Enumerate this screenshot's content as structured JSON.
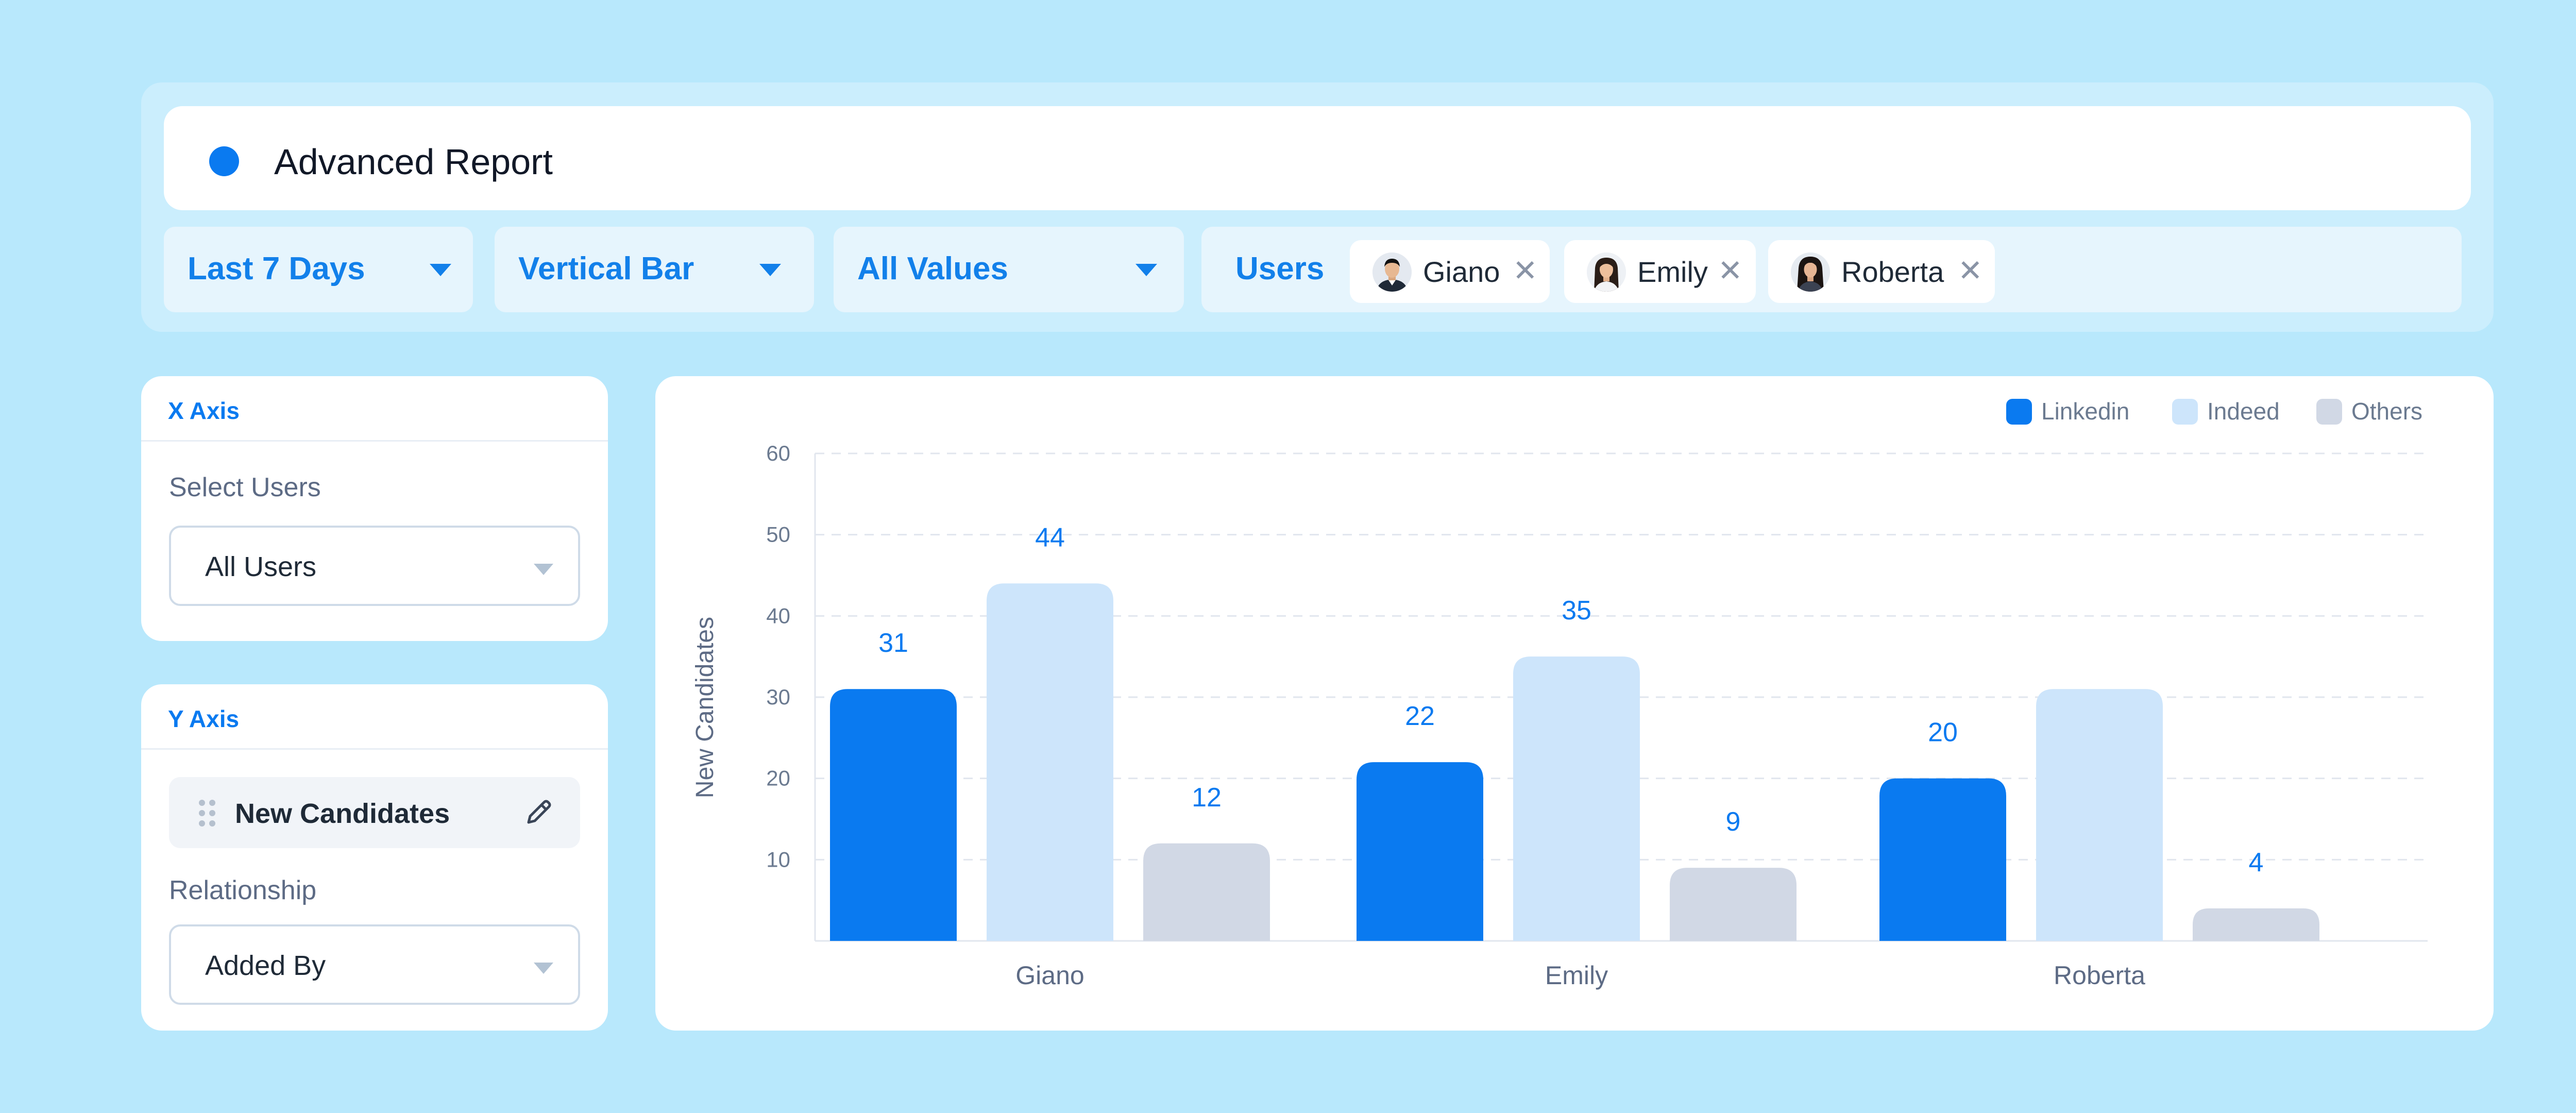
{
  "report": {
    "title": "Advanced Report",
    "accent_color": "#0a7af0"
  },
  "filters": {
    "date_range": "Last 7 Days",
    "chart_type": "Vertical Bar",
    "values": "All Values",
    "users_label": "Users",
    "selected_users": [
      {
        "name": "Giano",
        "avatar_icon": "avatar-man-icon"
      },
      {
        "name": "Emily",
        "avatar_icon": "avatar-woman-icon"
      },
      {
        "name": "Roberta",
        "avatar_icon": "avatar-woman-icon"
      }
    ],
    "remove_glyph": "✕"
  },
  "x_axis_panel": {
    "title": "X Axis",
    "select_label": "Select Users",
    "select_value": "All Users"
  },
  "y_axis_panel": {
    "title": "Y Axis",
    "metric": "New Candidates",
    "relationship_label": "Relationship",
    "relationship_value": "Added By"
  },
  "chart_data": {
    "type": "bar",
    "categories": [
      "Giano",
      "Emily",
      "Roberta"
    ],
    "series": [
      {
        "name": "Linkedin",
        "color": "#0a7af0",
        "values": [
          31,
          22,
          20
        ],
        "labels": [
          "31",
          "22",
          "20"
        ]
      },
      {
        "name": "Indeed",
        "color": "#cde5fb",
        "values": [
          44,
          35,
          31
        ],
        "labels": [
          "44",
          "35",
          ""
        ]
      },
      {
        "name": "Others",
        "color": "#d1d8e5",
        "values": [
          12,
          9,
          4
        ],
        "labels": [
          "12",
          "9",
          "4"
        ]
      }
    ],
    "ylabel": "New Candidates",
    "xlabel": "",
    "ylim": [
      0,
      60
    ],
    "yticks": [
      10,
      20,
      30,
      40,
      50,
      60
    ],
    "grid": true,
    "legend_position": "top-right",
    "label_color": "#0a7af0"
  }
}
